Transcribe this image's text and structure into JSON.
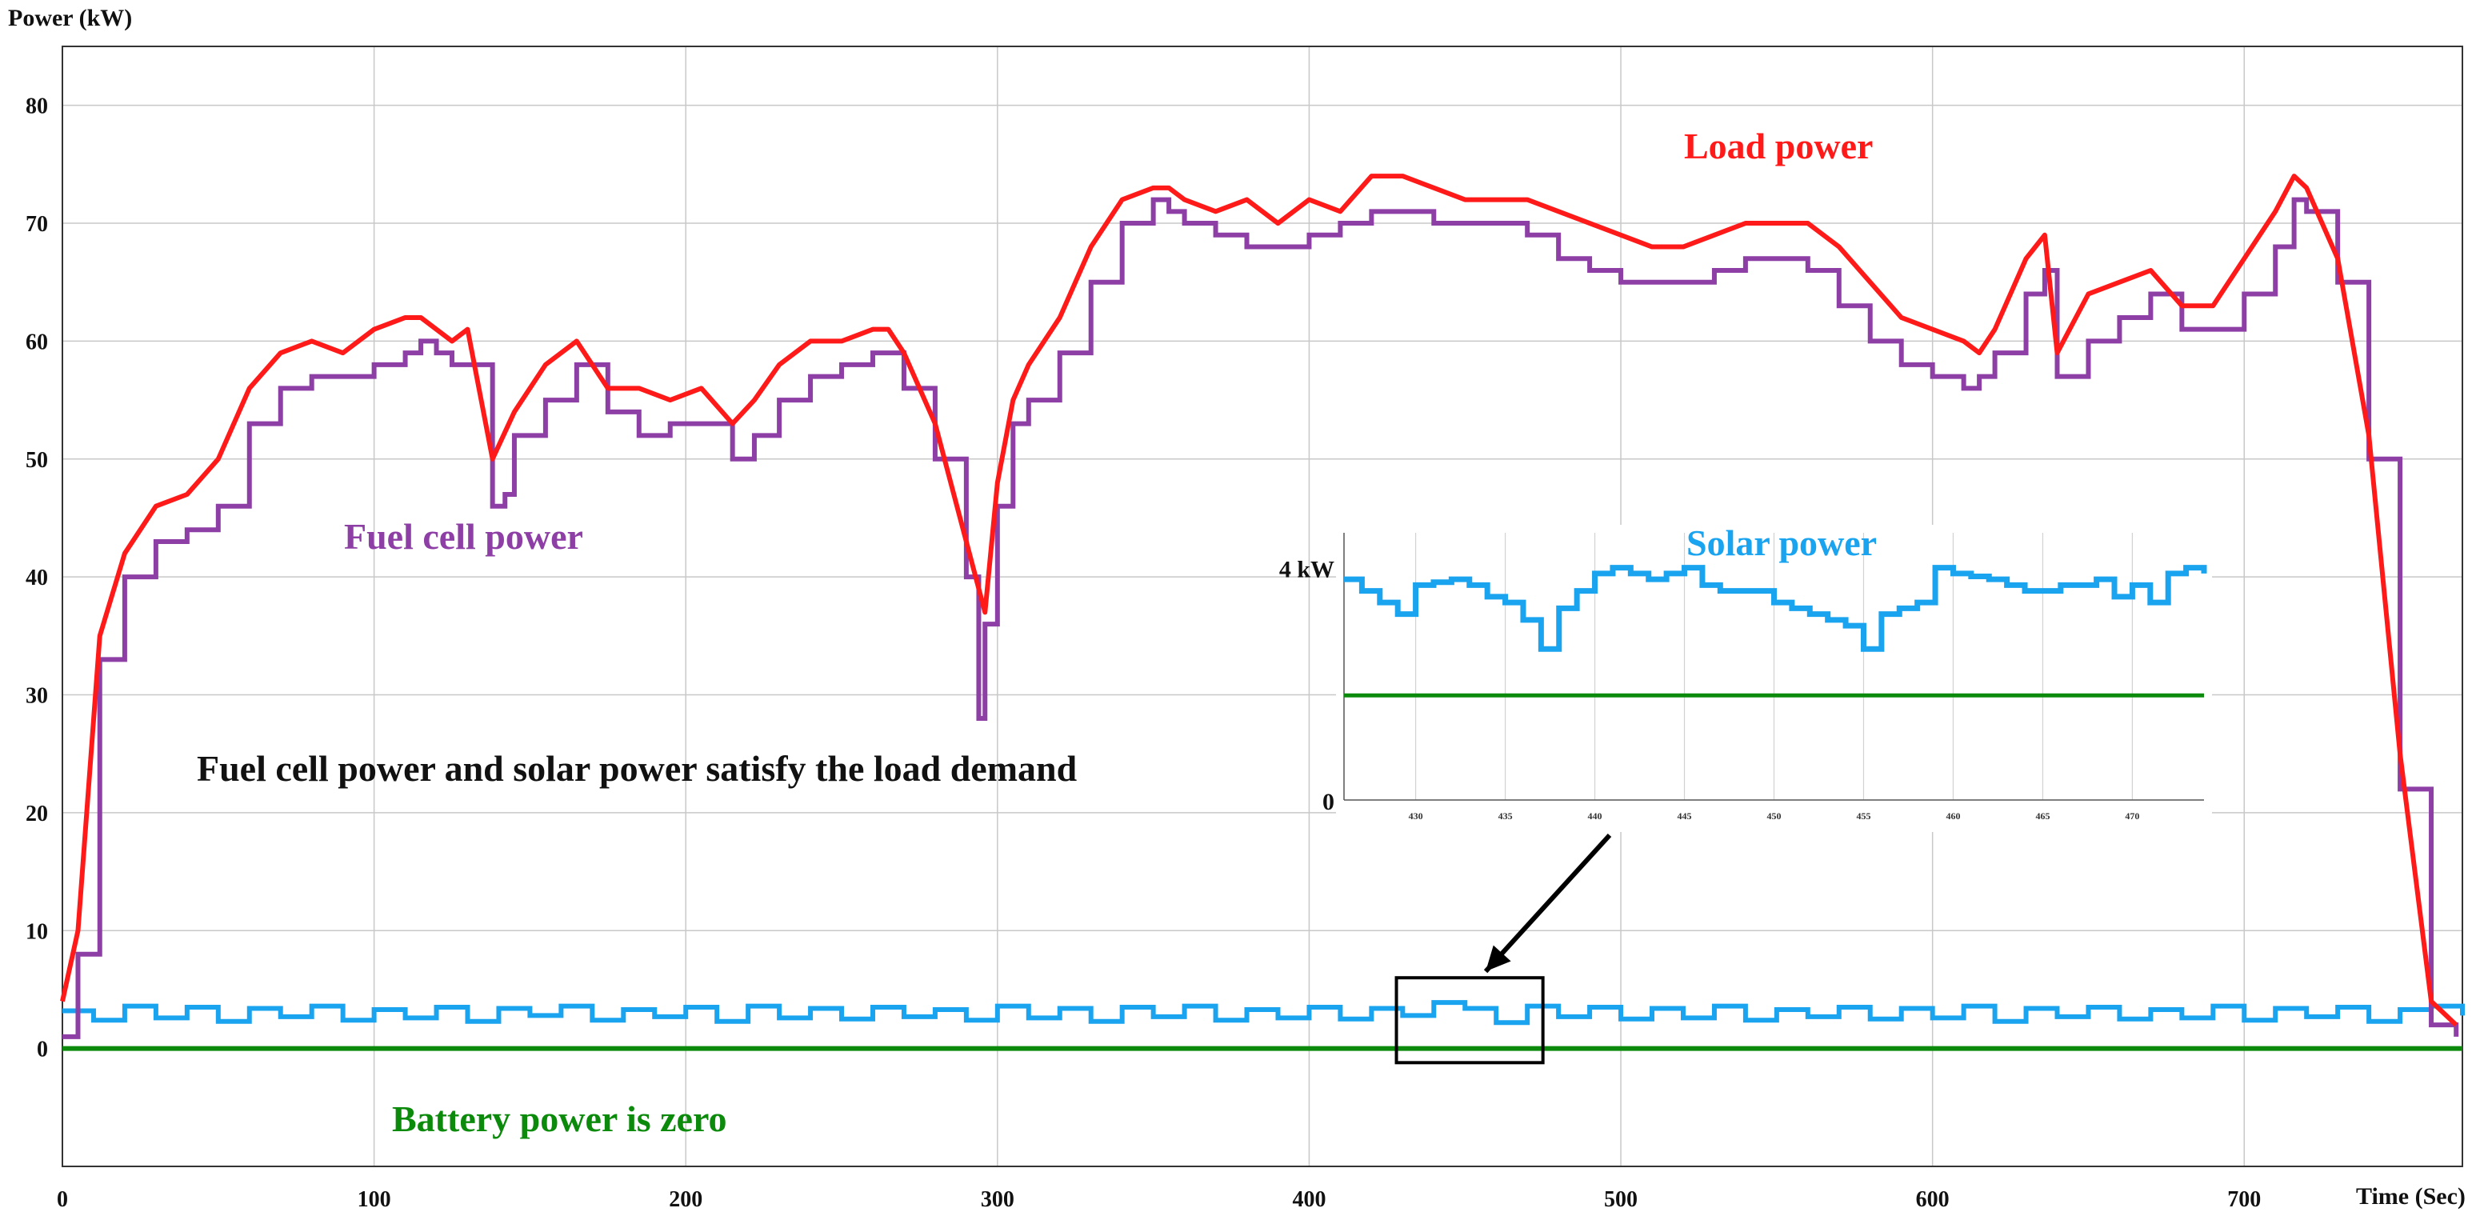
{
  "chart_data": {
    "type": "line",
    "ylabel": "Power (kW)",
    "xlabel": "Time (Sec)",
    "xlim": [
      0,
      770
    ],
    "ylim": [
      -10,
      85
    ],
    "xticks": [
      0,
      100,
      200,
      300,
      400,
      500,
      600,
      700
    ],
    "yticks": [
      0,
      10,
      20,
      30,
      40,
      50,
      60,
      70,
      80
    ],
    "grid": true,
    "colors": {
      "load": "#ff1a1a",
      "fuel": "#8e3fa6",
      "solar": "#1aa3ee",
      "battery": "#0c8a0c",
      "note": "#111111"
    },
    "annotations": {
      "load": "Load power",
      "fuel": "Fuel cell power",
      "solar": "Solar power",
      "battery": "Battery power is zero",
      "demand": "Fuel cell power and solar power satisfy the load demand"
    },
    "series": [
      {
        "name": "Load power",
        "key": "load",
        "x": [
          0,
          5,
          12,
          20,
          30,
          40,
          50,
          60,
          70,
          80,
          90,
          100,
          110,
          115,
          120,
          125,
          130,
          138,
          145,
          155,
          165,
          175,
          185,
          195,
          205,
          215,
          222,
          230,
          240,
          250,
          260,
          265,
          270,
          280,
          290,
          296,
          300,
          305,
          310,
          320,
          330,
          340,
          350,
          355,
          360,
          370,
          380,
          390,
          400,
          410,
          420,
          430,
          440,
          450,
          460,
          470,
          480,
          490,
          500,
          510,
          520,
          530,
          540,
          550,
          560,
          570,
          580,
          590,
          600,
          610,
          615,
          620,
          630,
          636,
          640,
          650,
          660,
          670,
          680,
          690,
          700,
          710,
          716,
          720,
          730,
          740,
          750,
          760,
          768
        ],
        "values": [
          4,
          10,
          35,
          42,
          46,
          47,
          50,
          56,
          59,
          60,
          59,
          61,
          62,
          62,
          61,
          60,
          61,
          50,
          54,
          58,
          60,
          56,
          56,
          55,
          56,
          53,
          55,
          58,
          60,
          60,
          61,
          61,
          59,
          53,
          43,
          37,
          48,
          55,
          58,
          62,
          68,
          72,
          73,
          73,
          72,
          71,
          72,
          70,
          72,
          71,
          74,
          74,
          73,
          72,
          72,
          72,
          71,
          70,
          69,
          68,
          68,
          69,
          70,
          70,
          70,
          68,
          65,
          62,
          61,
          60,
          59,
          61,
          67,
          69,
          59,
          64,
          65,
          66,
          63,
          63,
          67,
          71,
          74,
          73,
          67,
          52,
          25,
          4,
          2
        ]
      },
      {
        "name": "Fuel cell power",
        "key": "fuel",
        "x": [
          0,
          5,
          12,
          20,
          30,
          40,
          50,
          60,
          70,
          80,
          90,
          100,
          110,
          115,
          120,
          125,
          130,
          138,
          142,
          145,
          155,
          165,
          175,
          185,
          195,
          205,
          215,
          222,
          230,
          240,
          250,
          260,
          265,
          270,
          280,
          290,
          294,
          296,
          300,
          305,
          310,
          320,
          330,
          340,
          350,
          355,
          360,
          370,
          380,
          390,
          400,
          410,
          420,
          430,
          440,
          450,
          460,
          470,
          480,
          490,
          500,
          510,
          520,
          530,
          540,
          550,
          560,
          570,
          580,
          590,
          600,
          610,
          615,
          620,
          630,
          636,
          640,
          650,
          660,
          670,
          680,
          690,
          700,
          710,
          716,
          720,
          730,
          740,
          750,
          760,
          768
        ],
        "values": [
          1,
          8,
          33,
          40,
          43,
          44,
          46,
          53,
          56,
          57,
          57,
          58,
          59,
          60,
          59,
          58,
          58,
          46,
          47,
          52,
          55,
          58,
          54,
          52,
          53,
          53,
          50,
          52,
          55,
          57,
          58,
          59,
          59,
          56,
          50,
          40,
          28,
          36,
          46,
          53,
          55,
          59,
          65,
          70,
          72,
          71,
          70,
          69,
          68,
          68,
          69,
          70,
          71,
          71,
          70,
          70,
          70,
          69,
          67,
          66,
          65,
          65,
          65,
          66,
          67,
          67,
          66,
          63,
          60,
          58,
          57,
          56,
          57,
          59,
          64,
          66,
          57,
          60,
          62,
          64,
          61,
          61,
          64,
          68,
          72,
          71,
          65,
          50,
          22,
          2,
          1
        ]
      },
      {
        "name": "Solar power",
        "key": "solar",
        "x": [
          0,
          10,
          20,
          30,
          40,
          50,
          60,
          70,
          80,
          90,
          100,
          110,
          120,
          130,
          140,
          150,
          160,
          170,
          180,
          190,
          200,
          210,
          220,
          230,
          240,
          250,
          260,
          270,
          280,
          290,
          300,
          310,
          320,
          330,
          340,
          350,
          360,
          370,
          380,
          390,
          400,
          410,
          420,
          430,
          440,
          450,
          460,
          470,
          480,
          490,
          500,
          510,
          520,
          530,
          540,
          550,
          560,
          570,
          580,
          590,
          600,
          610,
          620,
          630,
          640,
          650,
          660,
          670,
          680,
          690,
          700,
          710,
          720,
          730,
          740,
          750,
          760,
          770
        ],
        "values": [
          3.2,
          2.4,
          3.6,
          2.6,
          3.5,
          2.3,
          3.4,
          2.7,
          3.6,
          2.4,
          3.3,
          2.6,
          3.5,
          2.3,
          3.4,
          2.8,
          3.6,
          2.4,
          3.3,
          2.7,
          3.5,
          2.3,
          3.6,
          2.6,
          3.4,
          2.5,
          3.5,
          2.7,
          3.3,
          2.4,
          3.6,
          2.6,
          3.4,
          2.3,
          3.5,
          2.7,
          3.6,
          2.4,
          3.3,
          2.6,
          3.5,
          2.5,
          3.4,
          2.8,
          3.9,
          3.4,
          2.2,
          3.6,
          2.7,
          3.5,
          2.5,
          3.4,
          2.6,
          3.6,
          2.4,
          3.3,
          2.7,
          3.5,
          2.5,
          3.4,
          2.6,
          3.6,
          2.3,
          3.4,
          2.7,
          3.5,
          2.5,
          3.3,
          2.6,
          3.6,
          2.4,
          3.4,
          2.7,
          3.5,
          2.3,
          3.3,
          3.6,
          2.8
        ]
      },
      {
        "name": "Battery power",
        "key": "battery",
        "x": [
          0,
          770
        ],
        "values": [
          0,
          0
        ]
      }
    ],
    "inset": {
      "xticks": [
        430,
        435,
        440,
        445,
        450,
        455,
        460,
        465,
        470
      ],
      "xlim": [
        426,
        474
      ],
      "ylim": [
        0,
        4.6
      ],
      "yticks": [
        0,
        4
      ],
      "ytick_labels": [
        "0",
        "4 kW"
      ],
      "highlight_box": {
        "x": [
          428,
          475
        ],
        "y": [
          -1.2,
          6
        ]
      },
      "solar": {
        "x": [
          426,
          427,
          428,
          429,
          430,
          431,
          432,
          433,
          434,
          435,
          436,
          437,
          438,
          439,
          440,
          441,
          442,
          443,
          444,
          445,
          446,
          447,
          448,
          449,
          450,
          451,
          452,
          453,
          454,
          455,
          456,
          457,
          458,
          459,
          460,
          461,
          462,
          463,
          464,
          465,
          466,
          467,
          468,
          469,
          470,
          471,
          472,
          473,
          474
        ],
        "values": [
          3.8,
          3.6,
          3.4,
          3.2,
          3.7,
          3.75,
          3.8,
          3.7,
          3.5,
          3.4,
          3.1,
          2.6,
          3.3,
          3.6,
          3.9,
          4.0,
          3.9,
          3.8,
          3.9,
          4.0,
          3.7,
          3.6,
          3.6,
          3.6,
          3.4,
          3.3,
          3.2,
          3.1,
          3.0,
          2.6,
          3.2,
          3.3,
          3.4,
          4.0,
          3.9,
          3.85,
          3.8,
          3.7,
          3.6,
          3.6,
          3.7,
          3.7,
          3.8,
          3.5,
          3.7,
          3.4,
          3.9,
          4.0,
          3.9
        ]
      },
      "battery_level": 1.8
    }
  }
}
